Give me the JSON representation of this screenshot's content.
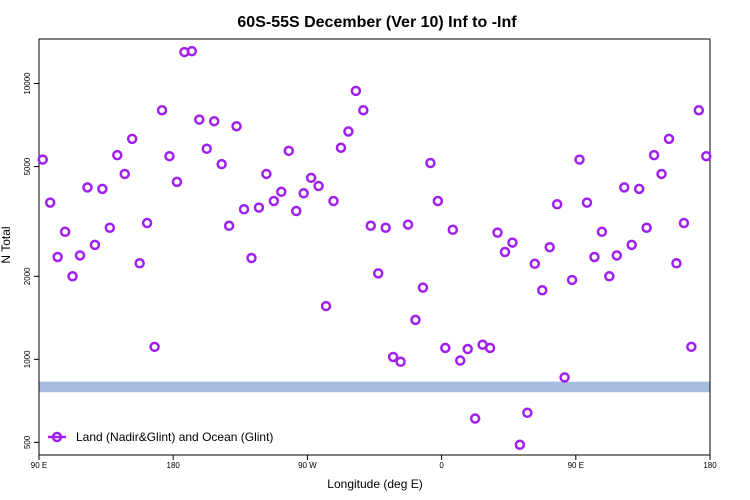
{
  "chart_data": {
    "type": "scatter",
    "title": "60S-55S December (Ver 10)   Inf to -Inf",
    "xlabel": "Longitude (deg E)",
    "ylabel": "N Total",
    "y_scale": "log",
    "xlim": [
      90,
      540
    ],
    "ylim": [
      450,
      14500
    ],
    "x_ticks": [
      {
        "value": 90,
        "label": "90 E"
      },
      {
        "value": 180,
        "label": "180"
      },
      {
        "value": 270,
        "label": "90 W"
      },
      {
        "value": 360,
        "label": "0"
      },
      {
        "value": 450,
        "label": "90 E"
      },
      {
        "value": 540,
        "label": "180"
      }
    ],
    "y_ticks": [
      {
        "value": 500,
        "label": "500"
      },
      {
        "value": 1000,
        "label": "1000"
      },
      {
        "value": 2000,
        "label": "2000"
      },
      {
        "value": 5000,
        "label": "5000"
      },
      {
        "value": 10000,
        "label": "10000"
      }
    ],
    "band": {
      "low": 760,
      "high": 830,
      "color": "#a7bde0"
    },
    "series": [
      {
        "name": "Land (Nadir&Glint) and Ocean (Glint)",
        "color": "#a020f0",
        "points": [
          [
            92.5,
            5300
          ],
          [
            97.5,
            3700
          ],
          [
            102.5,
            2350
          ],
          [
            107.5,
            2900
          ],
          [
            112.5,
            2000
          ],
          [
            117.5,
            2380
          ],
          [
            122.5,
            4200
          ],
          [
            127.5,
            2600
          ],
          [
            132.5,
            4150
          ],
          [
            137.5,
            3000
          ],
          [
            142.5,
            5500
          ],
          [
            147.5,
            4700
          ],
          [
            152.5,
            6300
          ],
          [
            157.5,
            2230
          ],
          [
            162.5,
            3120
          ],
          [
            167.5,
            1110
          ],
          [
            172.5,
            8000
          ],
          [
            177.5,
            5450
          ],
          [
            182.5,
            4400
          ],
          [
            187.5,
            13000
          ],
          [
            192.5,
            13100
          ],
          [
            197.5,
            7400
          ],
          [
            202.5,
            5800
          ],
          [
            207.5,
            7300
          ],
          [
            212.5,
            5100
          ],
          [
            217.5,
            3050
          ],
          [
            222.5,
            7000
          ],
          [
            227.5,
            3500
          ],
          [
            232.5,
            2330
          ],
          [
            237.5,
            3550
          ],
          [
            242.5,
            4700
          ],
          [
            247.5,
            3750
          ],
          [
            252.5,
            4050
          ],
          [
            257.5,
            5700
          ],
          [
            262.5,
            3450
          ],
          [
            267.5,
            4000
          ],
          [
            272.5,
            4550
          ],
          [
            277.5,
            4250
          ],
          [
            282.5,
            1560
          ],
          [
            287.5,
            3750
          ],
          [
            292.5,
            5850
          ],
          [
            297.5,
            6700
          ],
          [
            302.5,
            9400
          ],
          [
            307.5,
            8000
          ],
          [
            312.5,
            3050
          ],
          [
            317.5,
            2050
          ],
          [
            322.5,
            3000
          ],
          [
            327.5,
            1020
          ],
          [
            332.5,
            980
          ],
          [
            337.5,
            3080
          ],
          [
            342.5,
            1390
          ],
          [
            347.5,
            1820
          ],
          [
            352.5,
            5150
          ],
          [
            357.5,
            3750
          ],
          [
            362.5,
            1100
          ],
          [
            367.5,
            2950
          ],
          [
            372.5,
            990
          ],
          [
            377.5,
            1090
          ],
          [
            382.5,
            610
          ],
          [
            387.5,
            1130
          ],
          [
            392.5,
            1100
          ],
          [
            397.5,
            2880
          ],
          [
            402.5,
            2450
          ],
          [
            407.5,
            2650
          ],
          [
            412.5,
            490
          ],
          [
            417.5,
            640
          ],
          [
            422.5,
            2220
          ],
          [
            427.5,
            1780
          ],
          [
            432.5,
            2550
          ],
          [
            437.5,
            3650
          ],
          [
            442.5,
            860
          ],
          [
            447.5,
            1940
          ],
          [
            452.5,
            5300
          ],
          [
            457.5,
            3700
          ],
          [
            462.5,
            2350
          ],
          [
            467.5,
            2900
          ],
          [
            472.5,
            2000
          ],
          [
            477.5,
            2380
          ],
          [
            482.5,
            4200
          ],
          [
            487.5,
            2600
          ],
          [
            492.5,
            4150
          ],
          [
            497.5,
            3000
          ],
          [
            502.5,
            5500
          ],
          [
            507.5,
            4700
          ],
          [
            512.5,
            6300
          ],
          [
            517.5,
            2230
          ],
          [
            522.5,
            3120
          ],
          [
            527.5,
            1110
          ],
          [
            532.5,
            8000
          ],
          [
            537.5,
            5450
          ]
        ]
      }
    ],
    "legend": {
      "position": "bottom-left"
    }
  }
}
